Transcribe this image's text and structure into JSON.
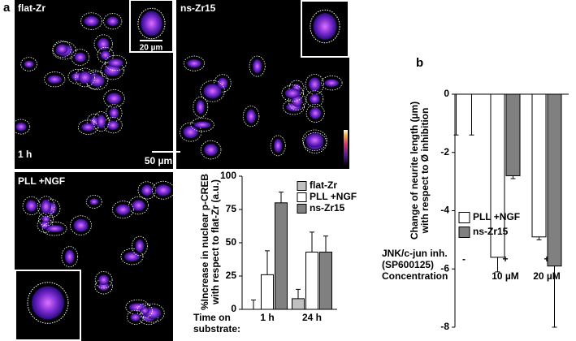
{
  "images": [
    {
      "label": "flat-Zr",
      "time": "1 h",
      "scale_bar": "50 µm",
      "inset_scale_bar": "20 µm"
    },
    {
      "label": "ns-Zr15"
    },
    {
      "label": "PLL +NGF"
    }
  ],
  "chart_data": [
    {
      "type": "bar",
      "panel": "a",
      "ylabel": [
        "%Increase in nuclear p-CREB",
        "with respect to flat-Zr (a.u.)"
      ],
      "xlabel": [
        "Time on",
        "substrate:"
      ],
      "categories": [
        "1 h",
        "24 h"
      ],
      "ylim": [
        0,
        100
      ],
      "yticks": [
        0,
        25,
        50,
        75,
        100
      ],
      "legend": "top-right",
      "series": [
        {
          "name": "flat-Zr",
          "color": "#c0c0c0",
          "values": [
            0,
            8
          ],
          "errors": [
            7,
            7
          ]
        },
        {
          "name": "PLL +NGF",
          "color": "#ffffff",
          "values": [
            26,
            43
          ],
          "errors": [
            18,
            15
          ]
        },
        {
          "name": "ns-Zr15",
          "color": "#808080",
          "values": [
            80,
            43
          ],
          "errors": [
            8,
            12
          ]
        }
      ]
    },
    {
      "type": "bar",
      "panel": "b",
      "ylabel": [
        "Change of neurite length (µm)",
        "with respect to Ø inhibition"
      ],
      "row_labels": [
        [
          "JNK/c-jun inh.",
          "(SP600125)"
        ],
        [
          "Concentration"
        ]
      ],
      "categories": [
        "-",
        "+",
        "+"
      ],
      "concentrations": [
        null,
        "10 µM",
        "20 µM"
      ],
      "ylim": [
        -8,
        0
      ],
      "yticks": [
        0,
        -2,
        -4,
        -6,
        -8
      ],
      "legend": "bottom-left",
      "series": [
        {
          "name": "PLL +NGF",
          "color": "#ffffff",
          "values": [
            0,
            -5.6,
            -4.9
          ],
          "errors": [
            1.4,
            0.5,
            0.1
          ]
        },
        {
          "name": "ns-Zr15",
          "color": "#808080",
          "values": [
            0,
            -2.8,
            -5.9
          ],
          "errors": [
            1.4,
            0.1,
            2.1
          ]
        }
      ]
    }
  ]
}
